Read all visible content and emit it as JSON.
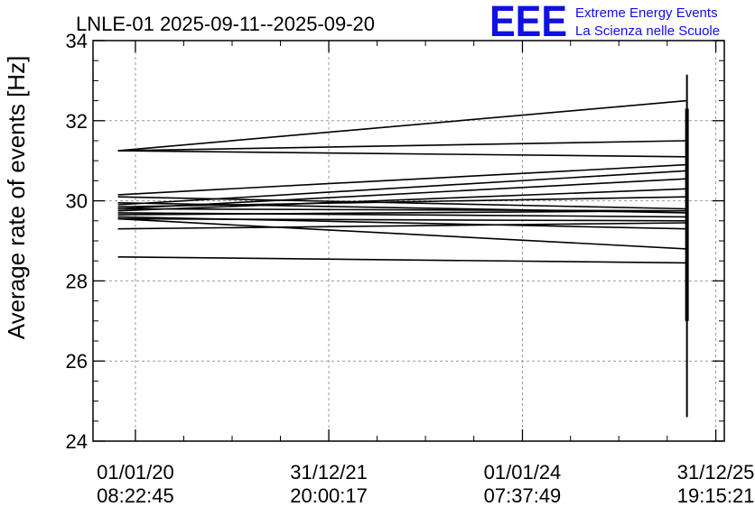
{
  "title": "LNLE-01 2025-09-11--2025-09-20",
  "logo": {
    "mark": "EEE",
    "line1": "Extreme Energy Events",
    "line2": "La Scienza nelle Scuole",
    "color": "#1010e0"
  },
  "chart_data": {
    "type": "line",
    "title": "LNLE-01 2025-09-11--2025-09-20",
    "xlabel": "",
    "ylabel": "Average rate of events [Hz]",
    "ylim": [
      24,
      34
    ],
    "yticks": [
      24,
      26,
      28,
      30,
      32,
      34
    ],
    "xlim": [
      "2019-07-25",
      "2026-02-01"
    ],
    "xticks": [
      {
        "date": "2020-01-01",
        "line1": "01/01/20",
        "line2": "08:22:45"
      },
      {
        "date": "2021-12-31",
        "line1": "31/12/21",
        "line2": "20:00:17"
      },
      {
        "date": "2024-01-01",
        "line1": "01/01/24",
        "line2": "07:37:49"
      },
      {
        "date": "2025-12-31",
        "line1": "31/12/25",
        "line2": "19:15:21"
      }
    ],
    "grid": true,
    "line_color": "#000000",
    "series": [
      {
        "x": [
          "2019-10-27",
          "2025-09-13"
        ],
        "y": [
          31.25,
          32.5
        ]
      },
      {
        "x": [
          "2019-10-27",
          "2025-09-13"
        ],
        "y": [
          31.25,
          31.5
        ]
      },
      {
        "x": [
          "2019-10-27",
          "2025-09-13"
        ],
        "y": [
          31.25,
          31.1
        ]
      },
      {
        "x": [
          "2019-10-27",
          "2025-09-13"
        ],
        "y": [
          30.15,
          30.9
        ]
      },
      {
        "x": [
          "2019-10-27",
          "2025-09-13"
        ],
        "y": [
          29.9,
          30.75
        ]
      },
      {
        "x": [
          "2019-10-27",
          "2025-09-13"
        ],
        "y": [
          29.8,
          30.55
        ]
      },
      {
        "x": [
          "2019-10-27",
          "2025-09-13"
        ],
        "y": [
          29.75,
          30.3
        ]
      },
      {
        "x": [
          "2019-10-27",
          "2025-09-13"
        ],
        "y": [
          29.85,
          30.1
        ]
      },
      {
        "x": [
          "2019-10-27",
          "2025-09-13"
        ],
        "y": [
          30.1,
          29.8
        ]
      },
      {
        "x": [
          "2019-10-27",
          "2025-09-13"
        ],
        "y": [
          29.95,
          29.7
        ]
      },
      {
        "x": [
          "2019-10-27",
          "2025-09-13"
        ],
        "y": [
          29.65,
          29.75
        ]
      },
      {
        "x": [
          "2019-10-27",
          "2025-09-13"
        ],
        "y": [
          29.7,
          29.6
        ]
      },
      {
        "x": [
          "2019-10-27",
          "2025-09-13"
        ],
        "y": [
          29.6,
          29.3
        ]
      },
      {
        "x": [
          "2019-10-27",
          "2025-09-13"
        ],
        "y": [
          29.55,
          29.5
        ]
      },
      {
        "x": [
          "2019-10-27",
          "2025-09-13"
        ],
        "y": [
          29.3,
          29.45
        ]
      },
      {
        "x": [
          "2019-10-27",
          "2025-09-13"
        ],
        "y": [
          29.55,
          28.8
        ]
      },
      {
        "x": [
          "2019-10-27",
          "2025-09-13"
        ],
        "y": [
          28.6,
          28.45
        ]
      },
      {
        "x": [
          "2019-10-27",
          "2025-09-13"
        ],
        "y": [
          29.8,
          29.75
        ]
      }
    ],
    "spike": {
      "x": "2025-09-13",
      "y": [
        24.6,
        33.15
      ]
    }
  }
}
